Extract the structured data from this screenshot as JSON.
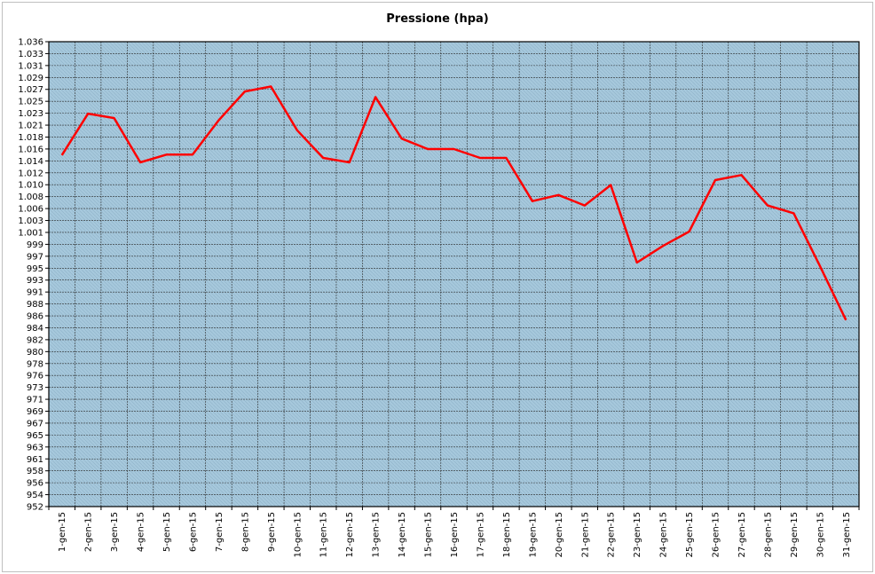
{
  "chart_data": {
    "type": "line",
    "title": "Pressione (hpa)",
    "xlabel": "",
    "ylabel": "",
    "categories": [
      "1-gen-15",
      "2-gen-15",
      "3-gen-15",
      "4-gen-15",
      "5-gen-15",
      "6-gen-15",
      "7-gen-15",
      "8-gen-15",
      "9-gen-15",
      "10-gen-15",
      "11-gen-15",
      "12-gen-15",
      "13-gen-15",
      "14-gen-15",
      "15-gen-15",
      "16-gen-15",
      "17-gen-15",
      "18-gen-15",
      "19-gen-15",
      "20-gen-15",
      "21-gen-15",
      "22-gen-15",
      "23-gen-15",
      "24-gen-15",
      "25-gen-15",
      "26-gen-15",
      "27-gen-15",
      "28-gen-15",
      "29-gen-15",
      "30-gen-15",
      "31-gen-15"
    ],
    "y_tick_labels": [
      "1.036",
      "1.033",
      "1.031",
      "1.029",
      "1.027",
      "1.025",
      "1.023",
      "1.021",
      "1.018",
      "1.016",
      "1.014",
      "1.012",
      "1.010",
      "1.008",
      "1.006",
      "1.003",
      "1.001",
      "999",
      "997",
      "995",
      "993",
      "991",
      "988",
      "986",
      "984",
      "982",
      "980",
      "978",
      "976",
      "973",
      "971",
      "969",
      "967",
      "965",
      "963",
      "961",
      "958",
      "956",
      "954",
      "952"
    ],
    "ylim": [
      952,
      1036
    ],
    "grid": true,
    "legend": "none",
    "plot_background": "#a6c8dc",
    "line_color": "#ff0000",
    "series": [
      {
        "values": [
          1015.5,
          1023.0,
          1022.2,
          1014.2,
          1015.6,
          1015.6,
          1021.8,
          1027.0,
          1027.9,
          1020.0,
          1015.0,
          1014.2,
          1026.0,
          1018.5,
          1016.6,
          1016.6,
          1015.0,
          1015.0,
          1007.2,
          1008.3,
          1006.4,
          1010.1,
          996.1,
          999.1,
          1001.7,
          1011.0,
          1011.9,
          1006.4,
          1005.0,
          995.5,
          985.7
        ]
      }
    ]
  }
}
